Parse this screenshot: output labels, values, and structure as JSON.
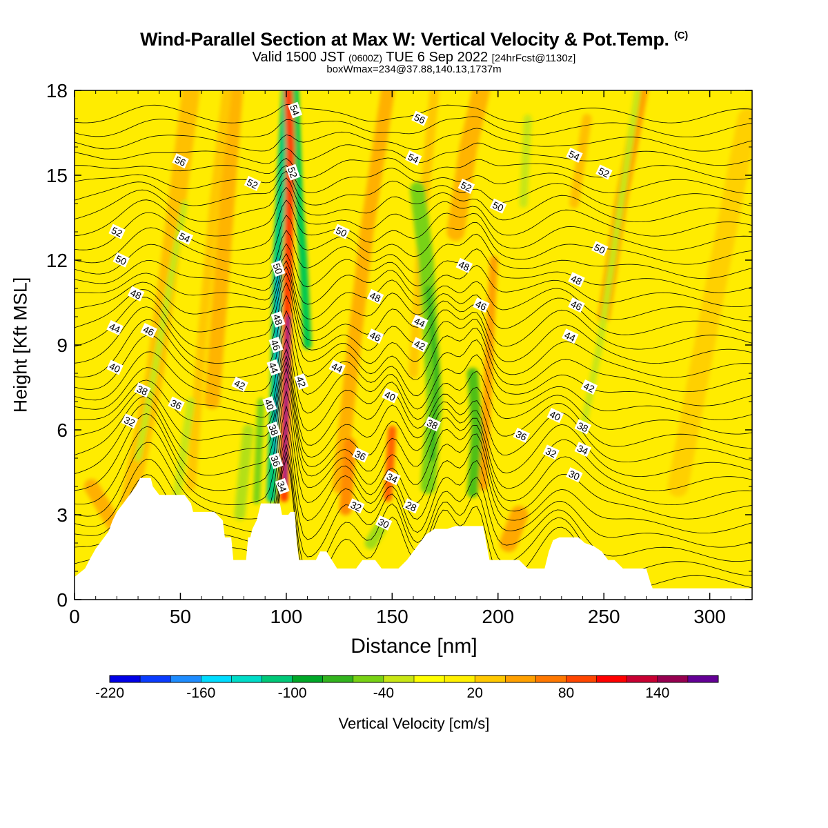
{
  "title": {
    "main": "Wind-Parallel Section at Max W: Vertical Velocity & Pot.Temp.",
    "copyright": "(C)",
    "valid": "Valid 1500 JST",
    "valid_z": "(0600Z)",
    "valid_date": "TUE 6 Sep 2022",
    "valid_fcst": "[24hrFcst@1130z]",
    "box": "boxWmax=234@37.88,140.13,1737m"
  },
  "chart_data": {
    "type": "heatmap",
    "xlabel": "Distance [nm]",
    "ylabel": "Height [Kft MSL]",
    "xlim": [
      0,
      320
    ],
    "ylim": [
      0,
      18
    ],
    "xticks": [
      0,
      50,
      100,
      150,
      200,
      250,
      300
    ],
    "yticks": [
      0,
      3,
      6,
      9,
      12,
      15,
      18
    ],
    "colorbar": {
      "label": "Vertical Velocity [cm/s]",
      "ticks": [
        -220,
        -160,
        -100,
        -40,
        20,
        80,
        140
      ],
      "colors": [
        "#0000e6",
        "#0a3cff",
        "#1e8cff",
        "#00dcff",
        "#00dcc8",
        "#00c878",
        "#00a828",
        "#32b41e",
        "#78d214",
        "#c8e614",
        "#ffff00",
        "#fff000",
        "#ffc800",
        "#ffa000",
        "#ff7800",
        "#ff4600",
        "#ff0000",
        "#c80032",
        "#960050",
        "#640096"
      ]
    },
    "theta_contour_labels": [
      {
        "x": 20,
        "y": 13.0,
        "v": "52"
      },
      {
        "x": 22,
        "y": 12.0,
        "v": "50"
      },
      {
        "x": 29,
        "y": 10.8,
        "v": "48"
      },
      {
        "x": 19,
        "y": 9.6,
        "v": "44"
      },
      {
        "x": 35,
        "y": 9.5,
        "v": "46"
      },
      {
        "x": 19,
        "y": 8.2,
        "v": "40"
      },
      {
        "x": 32,
        "y": 7.4,
        "v": "38"
      },
      {
        "x": 48,
        "y": 6.9,
        "v": "36"
      },
      {
        "x": 26,
        "y": 6.3,
        "v": "32"
      },
      {
        "x": 50,
        "y": 15.5,
        "v": "56"
      },
      {
        "x": 52,
        "y": 12.8,
        "v": "54"
      },
      {
        "x": 84,
        "y": 14.7,
        "v": "52"
      },
      {
        "x": 78,
        "y": 7.6,
        "v": "42"
      },
      {
        "x": 104,
        "y": 17.3,
        "v": "54"
      },
      {
        "x": 103,
        "y": 15.1,
        "v": "52"
      },
      {
        "x": 96,
        "y": 11.7,
        "v": "50"
      },
      {
        "x": 96,
        "y": 9.9,
        "v": "48"
      },
      {
        "x": 95,
        "y": 9.0,
        "v": "46"
      },
      {
        "x": 94,
        "y": 8.2,
        "v": "44"
      },
      {
        "x": 92,
        "y": 6.9,
        "v": "40"
      },
      {
        "x": 94,
        "y": 6.0,
        "v": "38"
      },
      {
        "x": 95,
        "y": 4.9,
        "v": "36"
      },
      {
        "x": 98,
        "y": 4.0,
        "v": "34"
      },
      {
        "x": 107,
        "y": 7.7,
        "v": "42"
      },
      {
        "x": 126,
        "y": 13.0,
        "v": "50"
      },
      {
        "x": 124,
        "y": 8.2,
        "v": "44"
      },
      {
        "x": 142,
        "y": 10.7,
        "v": "48"
      },
      {
        "x": 142,
        "y": 9.3,
        "v": "46"
      },
      {
        "x": 149,
        "y": 7.2,
        "v": "40"
      },
      {
        "x": 135,
        "y": 5.1,
        "v": "36"
      },
      {
        "x": 150,
        "y": 4.3,
        "v": "34"
      },
      {
        "x": 133,
        "y": 3.3,
        "v": "32"
      },
      {
        "x": 146,
        "y": 2.7,
        "v": "30"
      },
      {
        "x": 159,
        "y": 3.3,
        "v": "28"
      },
      {
        "x": 163,
        "y": 17.0,
        "v": "56"
      },
      {
        "x": 160,
        "y": 15.6,
        "v": "54"
      },
      {
        "x": 163,
        "y": 9.8,
        "v": "44"
      },
      {
        "x": 163,
        "y": 9.0,
        "v": "42"
      },
      {
        "x": 169,
        "y": 6.2,
        "v": "38"
      },
      {
        "x": 185,
        "y": 14.6,
        "v": "52"
      },
      {
        "x": 200,
        "y": 13.9,
        "v": "50"
      },
      {
        "x": 184,
        "y": 11.8,
        "v": "48"
      },
      {
        "x": 192,
        "y": 10.4,
        "v": "46"
      },
      {
        "x": 211,
        "y": 5.8,
        "v": "36"
      },
      {
        "x": 227,
        "y": 6.5,
        "v": "40"
      },
      {
        "x": 240,
        "y": 6.1,
        "v": "38"
      },
      {
        "x": 225,
        "y": 5.2,
        "v": "32"
      },
      {
        "x": 240,
        "y": 5.3,
        "v": "34"
      },
      {
        "x": 236,
        "y": 4.4,
        "v": "30"
      },
      {
        "x": 236,
        "y": 15.7,
        "v": "54"
      },
      {
        "x": 250,
        "y": 15.1,
        "v": "52"
      },
      {
        "x": 248,
        "y": 12.4,
        "v": "50"
      },
      {
        "x": 237,
        "y": 11.3,
        "v": "48"
      },
      {
        "x": 237,
        "y": 10.4,
        "v": "46"
      },
      {
        "x": 234,
        "y": 9.3,
        "v": "44"
      },
      {
        "x": 243,
        "y": 7.5,
        "v": "42"
      }
    ],
    "terrain_top_kft": [
      [
        0,
        0.8
      ],
      [
        5,
        1.1
      ],
      [
        7,
        1.4
      ],
      [
        10,
        1.8
      ],
      [
        13,
        2.1
      ],
      [
        16,
        2.4
      ],
      [
        18,
        2.8
      ],
      [
        20,
        3.1
      ],
      [
        23,
        3.4
      ],
      [
        26,
        3.7
      ],
      [
        29,
        4.0
      ],
      [
        31,
        4.3
      ],
      [
        36,
        4.3
      ],
      [
        37,
        4.0
      ],
      [
        40,
        3.7
      ],
      [
        52,
        3.7
      ],
      [
        55,
        3.4
      ],
      [
        56,
        3.1
      ],
      [
        59,
        3.1
      ],
      [
        66,
        3.1
      ],
      [
        70,
        2.8
      ],
      [
        71,
        2.2
      ],
      [
        74,
        2.2
      ],
      [
        75,
        1.4
      ],
      [
        81,
        1.4
      ],
      [
        82,
        2.2
      ],
      [
        83,
        2.2
      ],
      [
        84,
        2.5
      ],
      [
        86,
        2.8
      ],
      [
        88,
        3.4
      ],
      [
        91,
        3.4
      ],
      [
        97,
        3.4
      ],
      [
        98,
        3.0
      ],
      [
        101,
        3.0
      ],
      [
        102,
        3.1
      ],
      [
        104,
        3.1
      ],
      [
        105,
        2.0
      ],
      [
        106,
        1.4
      ],
      [
        108,
        1.4
      ],
      [
        109,
        1.4
      ],
      [
        114,
        1.4
      ],
      [
        116,
        1.7
      ],
      [
        119,
        1.7
      ],
      [
        124,
        1.1
      ],
      [
        126,
        1.1
      ],
      [
        133,
        1.1
      ],
      [
        136,
        1.4
      ],
      [
        142,
        1.4
      ],
      [
        145,
        1.1
      ],
      [
        150,
        1.1
      ],
      [
        153,
        1.1
      ],
      [
        157,
        1.4
      ],
      [
        160,
        1.7
      ],
      [
        163,
        2.0
      ],
      [
        166,
        2.3
      ],
      [
        170,
        2.5
      ],
      [
        176,
        2.5
      ],
      [
        180,
        2.6
      ],
      [
        193,
        2.6
      ],
      [
        195,
        1.8
      ],
      [
        196,
        1.4
      ],
      [
        199,
        1.4
      ],
      [
        210,
        1.4
      ],
      [
        214,
        1.1
      ],
      [
        222,
        1.1
      ],
      [
        224,
        1.7
      ],
      [
        225,
        1.9
      ],
      [
        226,
        2.1
      ],
      [
        229,
        2.2
      ],
      [
        238,
        2.2
      ],
      [
        241,
        2.0
      ],
      [
        245,
        1.9
      ],
      [
        249,
        1.7
      ],
      [
        252,
        1.4
      ],
      [
        255,
        1.4
      ],
      [
        259,
        1.1
      ],
      [
        262,
        1.1
      ],
      [
        270,
        1.1
      ],
      [
        272,
        0.6
      ],
      [
        273,
        0.4
      ],
      [
        280,
        0.4
      ],
      [
        320,
        0.4
      ]
    ]
  }
}
